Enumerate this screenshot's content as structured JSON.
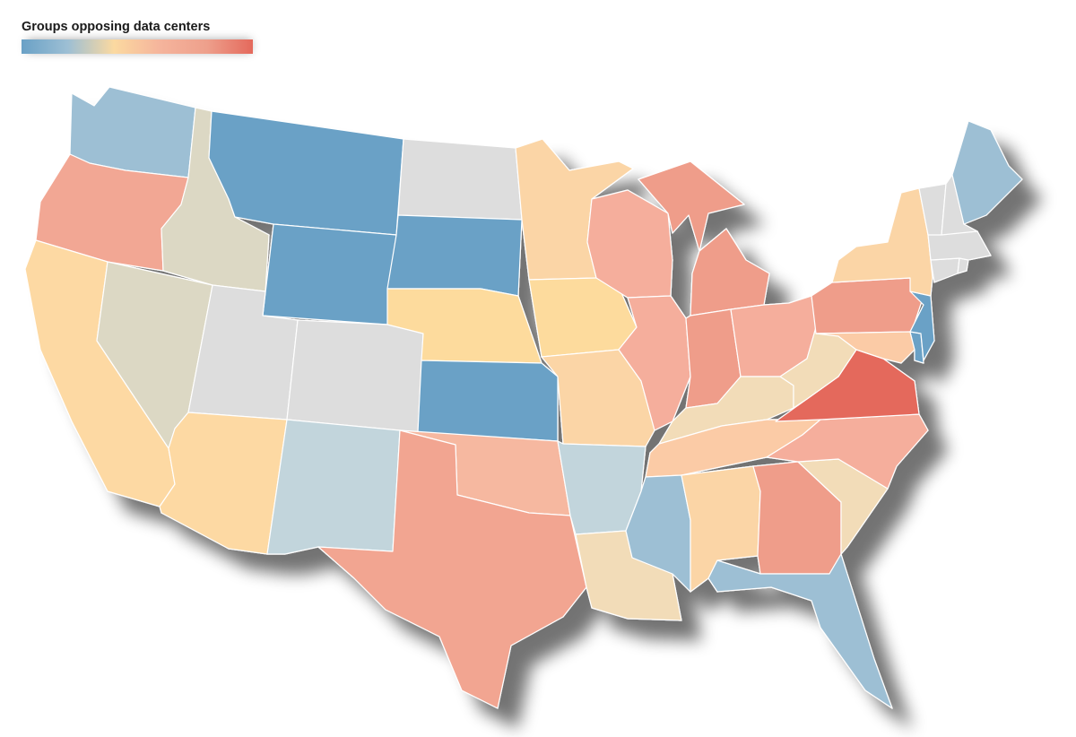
{
  "legend": {
    "title": "Groups opposing data centers",
    "scale_colors": [
      "#6aa1c6",
      "#9dbfd4",
      "#fbd9a0",
      "#f5b49c",
      "#eea08c",
      "#e4695c"
    ]
  },
  "map": {
    "region": "contiguous United States",
    "states": [
      {
        "name": "Washington",
        "color": "#9dbfd4"
      },
      {
        "name": "Oregon",
        "color": "#f2a794"
      },
      {
        "name": "California",
        "color": "#fdd9a3"
      },
      {
        "name": "Idaho",
        "color": "#dcd8c4"
      },
      {
        "name": "Nevada",
        "color": "#dcd8c4"
      },
      {
        "name": "Montana",
        "color": "#6aa1c6"
      },
      {
        "name": "Wyoming",
        "color": "#6aa1c6"
      },
      {
        "name": "Utah",
        "color": "#dddddd"
      },
      {
        "name": "Arizona",
        "color": "#fdd9a3"
      },
      {
        "name": "Colorado",
        "color": "#dddddd"
      },
      {
        "name": "New Mexico",
        "color": "#c2d5dc"
      },
      {
        "name": "North Dakota",
        "color": "#dddddd"
      },
      {
        "name": "South Dakota",
        "color": "#6aa1c6"
      },
      {
        "name": "Nebraska",
        "color": "#fddb9d"
      },
      {
        "name": "Kansas",
        "color": "#6aa1c6"
      },
      {
        "name": "Oklahoma",
        "color": "#f6b8a0"
      },
      {
        "name": "Texas",
        "color": "#f2a591"
      },
      {
        "name": "Minnesota",
        "color": "#fbd5a6"
      },
      {
        "name": "Iowa",
        "color": "#fddb9d"
      },
      {
        "name": "Missouri",
        "color": "#fbd5a6"
      },
      {
        "name": "Arkansas",
        "color": "#c2d5dc"
      },
      {
        "name": "Louisiana",
        "color": "#f2dcb8"
      },
      {
        "name": "Wisconsin",
        "color": "#f5ae9c"
      },
      {
        "name": "Illinois",
        "color": "#f5ae9c"
      },
      {
        "name": "Michigan",
        "color": "#ef9d8a"
      },
      {
        "name": "Indiana",
        "color": "#ef9d8a"
      },
      {
        "name": "Ohio",
        "color": "#f5ae9c"
      },
      {
        "name": "Kentucky",
        "color": "#f2dcb8"
      },
      {
        "name": "Tennessee",
        "color": "#fbcba6"
      },
      {
        "name": "Mississippi",
        "color": "#9dbfd4"
      },
      {
        "name": "Alabama",
        "color": "#fbd5a6"
      },
      {
        "name": "Georgia",
        "color": "#ef9d8a"
      },
      {
        "name": "Florida",
        "color": "#9dbfd4"
      },
      {
        "name": "South Carolina",
        "color": "#f2dcb8"
      },
      {
        "name": "North Carolina",
        "color": "#f5ae9c"
      },
      {
        "name": "Virginia",
        "color": "#e4695c"
      },
      {
        "name": "West Virginia",
        "color": "#f2dcb8"
      },
      {
        "name": "Pennsylvania",
        "color": "#ef9d8a"
      },
      {
        "name": "Maryland",
        "color": "#fbcba6"
      },
      {
        "name": "Delaware",
        "color": "#6aa1c6"
      },
      {
        "name": "New Jersey",
        "color": "#6aa1c6"
      },
      {
        "name": "New York",
        "color": "#fbd5a6"
      },
      {
        "name": "Connecticut",
        "color": "#dddddd"
      },
      {
        "name": "Rhode Island",
        "color": "#dddddd"
      },
      {
        "name": "Massachusetts",
        "color": "#dddddd"
      },
      {
        "name": "Vermont",
        "color": "#dddddd"
      },
      {
        "name": "New Hampshire",
        "color": "#dddddd"
      },
      {
        "name": "Maine",
        "color": "#9dbfd4"
      }
    ]
  }
}
